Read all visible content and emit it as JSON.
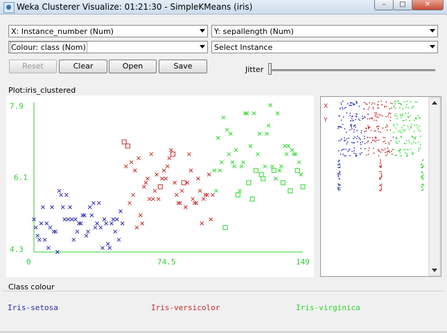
{
  "window": {
    "title": "Weka Clusterer Visualize: 01:21:30 - SimpleKMeans (iris)",
    "minimize_label": "–",
    "maximize_label": "□",
    "close_label": "✕"
  },
  "controls": {
    "x_axis_select": "X: Instance_number (Num)",
    "y_axis_select": "Y: sepallength (Num)",
    "colour_select": "Colour: class (Nom)",
    "instance_select": "Select Instance",
    "reset_label": "Reset",
    "clear_label": "Clear",
    "open_label": "Open",
    "save_label": "Save",
    "jitter_label": "Jitter",
    "jitter_value": 0
  },
  "plot": {
    "title": "Plot:iris_clustered",
    "x_ticks": [
      "0",
      "74.5",
      "149"
    ],
    "y_ticks": [
      "7.9",
      "6.1",
      "4.3"
    ]
  },
  "matrix": {
    "x_marker": "X",
    "y_marker": "Y"
  },
  "legend": {
    "heading": "Class colour",
    "items": [
      "Iris-setosa",
      "Iris-versicolor",
      "Iris-virginica"
    ]
  },
  "colors": {
    "axis": "#33cc33",
    "setosa": "#2a2ab0",
    "versicolor": "#c82828",
    "virginica": "#2ad82a"
  },
  "chart_data": {
    "type": "scatter",
    "title": "Plot:iris_clustered",
    "xlabel": "Instance_number",
    "ylabel": "sepallength",
    "xlim": [
      0,
      149
    ],
    "ylim": [
      4.3,
      7.9
    ],
    "series": [
      {
        "name": "Iris-setosa",
        "color": "#2a2ab0",
        "marker": "x",
        "points": [
          [
            0,
            5.1
          ],
          [
            1,
            4.9
          ],
          [
            2,
            4.7
          ],
          [
            3,
            4.6
          ],
          [
            4,
            5.0
          ],
          [
            5,
            5.4
          ],
          [
            6,
            4.6
          ],
          [
            7,
            5.0
          ],
          [
            8,
            4.4
          ],
          [
            9,
            4.9
          ],
          [
            10,
            5.4
          ],
          [
            11,
            4.8
          ],
          [
            12,
            4.8
          ],
          [
            13,
            4.3
          ],
          [
            14,
            5.8
          ],
          [
            15,
            5.7
          ],
          [
            16,
            5.4
          ],
          [
            17,
            5.1
          ],
          [
            18,
            5.7
          ],
          [
            19,
            5.1
          ],
          [
            20,
            5.4
          ],
          [
            21,
            5.1
          ],
          [
            22,
            4.6
          ],
          [
            23,
            5.1
          ],
          [
            24,
            4.8
          ],
          [
            25,
            5.0
          ],
          [
            26,
            5.0
          ],
          [
            27,
            5.2
          ],
          [
            28,
            5.2
          ],
          [
            29,
            4.7
          ],
          [
            30,
            4.8
          ],
          [
            31,
            5.4
          ],
          [
            32,
            5.2
          ],
          [
            33,
            5.5
          ],
          [
            34,
            4.9
          ],
          [
            35,
            5.0
          ],
          [
            36,
            5.5
          ],
          [
            37,
            4.9
          ],
          [
            38,
            4.4
          ],
          [
            39,
            5.1
          ],
          [
            40,
            5.0
          ],
          [
            41,
            4.5
          ],
          [
            42,
            4.4
          ],
          [
            43,
            5.0
          ],
          [
            44,
            5.1
          ],
          [
            45,
            4.8
          ],
          [
            46,
            5.1
          ],
          [
            47,
            4.6
          ],
          [
            48,
            5.3
          ],
          [
            49,
            5.0
          ]
        ]
      },
      {
        "name": "Iris-versicolor",
        "color": "#c82828",
        "marker": "x",
        "points": [
          [
            50,
            7.0
          ],
          [
            51,
            6.4
          ],
          [
            52,
            6.9
          ],
          [
            53,
            5.5
          ],
          [
            54,
            6.5
          ],
          [
            55,
            5.7
          ],
          [
            56,
            6.3
          ],
          [
            57,
            4.9
          ],
          [
            58,
            6.6
          ],
          [
            59,
            5.2
          ],
          [
            60,
            5.0
          ],
          [
            61,
            5.9
          ],
          [
            62,
            6.0
          ],
          [
            63,
            6.1
          ],
          [
            64,
            5.6
          ],
          [
            65,
            6.7
          ],
          [
            66,
            5.6
          ],
          [
            67,
            5.8
          ],
          [
            68,
            6.2
          ],
          [
            69,
            5.6
          ],
          [
            70,
            5.9
          ],
          [
            71,
            6.1
          ],
          [
            72,
            6.3
          ],
          [
            73,
            6.1
          ],
          [
            74,
            6.4
          ],
          [
            75,
            6.6
          ],
          [
            76,
            6.8
          ],
          [
            77,
            6.7
          ],
          [
            78,
            6.0
          ],
          [
            79,
            5.7
          ],
          [
            80,
            5.5
          ],
          [
            81,
            5.5
          ],
          [
            82,
            5.8
          ],
          [
            83,
            6.0
          ],
          [
            84,
            5.4
          ],
          [
            85,
            6.0
          ],
          [
            86,
            6.7
          ],
          [
            87,
            6.3
          ],
          [
            88,
            5.6
          ],
          [
            89,
            5.5
          ],
          [
            90,
            5.5
          ],
          [
            91,
            6.1
          ],
          [
            92,
            5.8
          ],
          [
            93,
            5.0
          ],
          [
            94,
            5.6
          ],
          [
            95,
            5.7
          ],
          [
            96,
            5.7
          ],
          [
            97,
            6.2
          ],
          [
            98,
            5.1
          ],
          [
            99,
            5.7
          ]
        ]
      },
      {
        "name": "Iris-virginica",
        "color": "#2ad82a",
        "marker": "x",
        "points": [
          [
            100,
            6.3
          ],
          [
            101,
            5.8
          ],
          [
            102,
            7.1
          ],
          [
            103,
            6.3
          ],
          [
            104,
            6.5
          ],
          [
            105,
            7.6
          ],
          [
            106,
            4.9
          ],
          [
            107,
            7.3
          ],
          [
            108,
            6.7
          ],
          [
            109,
            7.2
          ],
          [
            110,
            6.5
          ],
          [
            111,
            6.4
          ],
          [
            112,
            6.8
          ],
          [
            113,
            5.7
          ],
          [
            114,
            5.8
          ],
          [
            115,
            6.4
          ],
          [
            116,
            6.5
          ],
          [
            117,
            7.7
          ],
          [
            118,
            7.7
          ],
          [
            119,
            6.0
          ],
          [
            120,
            6.9
          ],
          [
            121,
            5.6
          ],
          [
            122,
            7.7
          ],
          [
            123,
            6.3
          ],
          [
            124,
            6.7
          ],
          [
            125,
            7.2
          ],
          [
            126,
            6.2
          ],
          [
            127,
            6.1
          ],
          [
            128,
            6.4
          ],
          [
            129,
            7.2
          ],
          [
            130,
            7.4
          ],
          [
            131,
            7.9
          ],
          [
            132,
            6.4
          ],
          [
            133,
            6.3
          ],
          [
            134,
            6.1
          ],
          [
            135,
            7.7
          ],
          [
            136,
            6.3
          ],
          [
            137,
            6.4
          ],
          [
            138,
            6.0
          ],
          [
            139,
            6.9
          ],
          [
            140,
            6.7
          ],
          [
            141,
            6.9
          ],
          [
            142,
            5.8
          ],
          [
            143,
            6.8
          ],
          [
            144,
            6.7
          ],
          [
            145,
            6.7
          ],
          [
            146,
            6.3
          ],
          [
            147,
            6.5
          ],
          [
            148,
            6.2
          ],
          [
            149,
            5.9
          ]
        ]
      }
    ],
    "misclassified_squares": [
      [
        50,
        7.0
      ],
      [
        52,
        6.9
      ],
      [
        70,
        5.9
      ],
      [
        77,
        6.7
      ],
      [
        83,
        6.0
      ],
      [
        106,
        4.9
      ],
      [
        113,
        5.7
      ],
      [
        119,
        6.0
      ],
      [
        121,
        5.6
      ],
      [
        123,
        6.3
      ],
      [
        126,
        6.2
      ],
      [
        127,
        6.1
      ],
      [
        133,
        6.3
      ],
      [
        138,
        6.0
      ],
      [
        142,
        5.8
      ],
      [
        146,
        6.3
      ],
      [
        149,
        5.9
      ]
    ]
  }
}
